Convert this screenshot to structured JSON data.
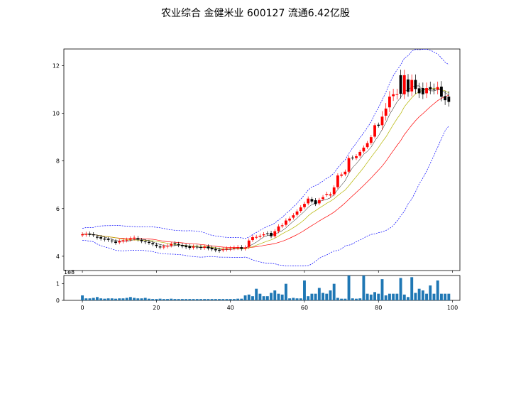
{
  "title": "农业综合 金健米业 600127 流通6.42亿股",
  "colors": {
    "up": "#ff0000",
    "down": "#000000",
    "ma_short": "#000000",
    "ma_mid": "#b5b500",
    "ma_long": "#ff0000",
    "band": "#0000ff",
    "volume": "#1f77b4"
  },
  "chart_data": [
    {
      "type": "candlestick",
      "x": {
        "min": -5,
        "max": 102,
        "ticks": [
          0,
          20,
          40,
          60,
          80,
          100
        ]
      },
      "y": {
        "min": 3.4,
        "max": 12.7,
        "ticks": [
          4,
          6,
          8,
          10,
          12
        ]
      },
      "close": [
        4.92,
        4.94,
        4.9,
        4.88,
        4.78,
        4.74,
        4.7,
        4.68,
        4.63,
        4.56,
        4.63,
        4.67,
        4.69,
        4.74,
        4.78,
        4.7,
        4.63,
        4.59,
        4.56,
        4.5,
        4.43,
        4.37,
        4.41,
        4.44,
        4.52,
        4.5,
        4.46,
        4.42,
        4.38,
        4.35,
        4.4,
        4.37,
        4.35,
        4.4,
        4.33,
        4.29,
        4.25,
        4.23,
        4.29,
        4.32,
        4.33,
        4.36,
        4.38,
        4.31,
        4.37,
        4.66,
        4.8,
        4.81,
        4.86,
        4.92,
        4.94,
        4.84,
        5.05,
        5.25,
        5.3,
        5.5,
        5.58,
        5.72,
        5.88,
        6.05,
        6.2,
        6.42,
        6.3,
        6.19,
        6.36,
        6.48,
        6.62,
        6.6,
        6.89,
        7.39,
        7.43,
        7.55,
        8.12,
        8.12,
        8.2,
        8.38,
        8.56,
        8.75,
        9.0,
        9.5,
        9.48,
        9.86,
        10.2,
        10.7,
        10.8,
        10.8,
        10.82,
        11.6,
        10.9,
        11.4,
        11.02,
        10.84,
        10.8,
        11.06,
        11.0,
        11.0,
        11.1,
        10.7,
        10.55,
        10.48
      ],
      "open": [
        4.88,
        4.9,
        4.95,
        4.92,
        4.82,
        4.8,
        4.74,
        4.72,
        4.66,
        4.62,
        4.58,
        4.62,
        4.66,
        4.7,
        4.74,
        4.76,
        4.68,
        4.62,
        4.6,
        4.55,
        4.48,
        4.41,
        4.37,
        4.41,
        4.45,
        4.54,
        4.51,
        4.47,
        4.44,
        4.42,
        4.36,
        4.4,
        4.39,
        4.35,
        4.41,
        4.36,
        4.3,
        4.27,
        4.25,
        4.28,
        4.3,
        4.33,
        4.34,
        4.38,
        4.32,
        4.39,
        4.68,
        4.8,
        4.82,
        4.88,
        4.96,
        4.98,
        4.84,
        5.05,
        5.26,
        5.32,
        5.5,
        5.62,
        5.74,
        5.9,
        6.06,
        6.22,
        6.4,
        6.35,
        6.22,
        6.4,
        6.58,
        6.55,
        6.6,
        6.9,
        7.38,
        7.44,
        7.55,
        8.14,
        8.12,
        8.22,
        8.4,
        8.58,
        8.76,
        9.02,
        9.52,
        9.5,
        9.9,
        10.25,
        10.72,
        10.78,
        11.6,
        10.8,
        11.42,
        10.92,
        11.4,
        11.05,
        11.06,
        10.84,
        11.1,
        11.02,
        11.0,
        11.12,
        10.72,
        10.7
      ]
    },
    {
      "type": "bar",
      "y": {
        "min": 0,
        "max": 1.5,
        "ticks": [
          0,
          1
        ],
        "offset_label": "1e8"
      },
      "values": [
        0.3,
        0.12,
        0.12,
        0.15,
        0.2,
        0.12,
        0.1,
        0.12,
        0.12,
        0.1,
        0.12,
        0.12,
        0.15,
        0.2,
        0.15,
        0.12,
        0.12,
        0.15,
        0.1,
        0.08,
        0.08,
        0.1,
        0.08,
        0.08,
        0.1,
        0.08,
        0.08,
        0.08,
        0.08,
        0.08,
        0.08,
        0.08,
        0.08,
        0.08,
        0.08,
        0.08,
        0.08,
        0.08,
        0.08,
        0.08,
        0.08,
        0.08,
        0.1,
        0.1,
        0.3,
        0.35,
        0.25,
        0.7,
        0.4,
        0.25,
        0.25,
        0.45,
        0.6,
        0.4,
        0.35,
        1.0,
        0.12,
        0.15,
        0.12,
        0.12,
        1.2,
        0.25,
        0.4,
        0.4,
        0.75,
        0.45,
        0.4,
        0.6,
        1.0,
        0.15,
        0.1,
        0.1,
        1.55,
        0.12,
        0.1,
        0.12,
        1.55,
        0.4,
        0.35,
        0.5,
        0.4,
        1.28,
        0.3,
        0.4,
        0.4,
        0.4,
        1.35,
        0.35,
        0.2,
        1.4,
        0.45,
        0.7,
        0.6,
        0.4,
        0.9,
        0.4,
        1.2,
        0.4,
        0.4,
        0.4
      ]
    }
  ]
}
